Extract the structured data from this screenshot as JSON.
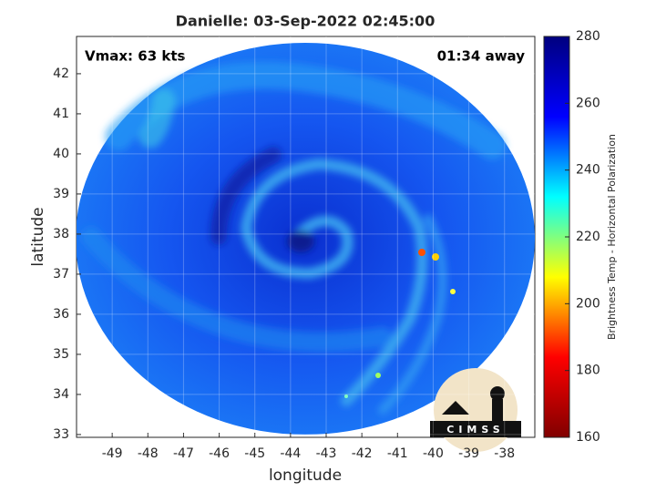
{
  "chart_data": {
    "type": "image",
    "title": "Danielle: 03-Sep-2022 02:45:00",
    "annotations": [
      "Vmax: 63 kts",
      "01:34 away"
    ],
    "xlabel": "longitude",
    "ylabel": "latitude",
    "xlim": [
      -50,
      -37.15
    ],
    "ylim": [
      32.93,
      42.93
    ],
    "xticks": [
      -49,
      -48,
      -47,
      -46,
      -45,
      -44,
      -43,
      -42,
      -41,
      -40,
      -39,
      -38
    ],
    "yticks": [
      33,
      34,
      35,
      36,
      37,
      38,
      39,
      40,
      41,
      42
    ],
    "grid": true,
    "colorbar": {
      "lim": [
        160,
        280
      ],
      "ticks": [
        160,
        180,
        200,
        220,
        240,
        260,
        280
      ],
      "label": "Brightness Temp - Horizontal Polarization",
      "colors": [
        "#800000",
        "#ff0000",
        "#ffff00",
        "#00ffff",
        "#0000ff",
        "#00007f"
      ]
    },
    "logo": "CIMSS"
  }
}
